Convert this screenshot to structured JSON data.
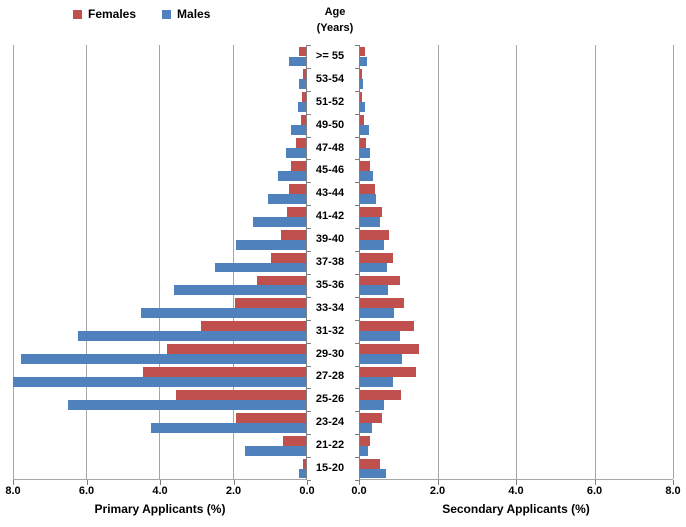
{
  "legend": {
    "items": [
      {
        "label": "Females",
        "color_key": "females"
      },
      {
        "label": "Males",
        "color_key": "males"
      }
    ]
  },
  "colors": {
    "females": "#C0504D",
    "males": "#4F81BD",
    "gridline": "#A6A6A6",
    "axis": "#7F7F7F",
    "text": "#000000"
  },
  "center_axis": {
    "title_line1": "Age",
    "title_line2": "(Years)",
    "categories": [
      ">= 55",
      "53-54",
      "51-52",
      "49-50",
      "47-48",
      "45-46",
      "43-44",
      "41-42",
      "39-40",
      "37-38",
      "35-36",
      "33-34",
      "31-32",
      "29-30",
      "27-28",
      "25-26",
      "23-24",
      "21-22",
      "15-20"
    ]
  },
  "chart_data": [
    {
      "id": "primary",
      "type": "bar",
      "orientation": "horizontal",
      "direction": "rtl",
      "xlabel": "Primary Applicants (%)",
      "xlim": [
        0,
        8
      ],
      "xmax": 8,
      "xticks": [
        8,
        6,
        4,
        2,
        0
      ],
      "gridlines": [
        8,
        6,
        4,
        2
      ],
      "grid": "vertical",
      "legend_position": "top-left",
      "categories": [
        ">= 55",
        "53-54",
        "51-52",
        "49-50",
        "47-48",
        "45-46",
        "43-44",
        "41-42",
        "39-40",
        "37-38",
        "35-36",
        "33-34",
        "31-32",
        "29-30",
        "27-28",
        "25-26",
        "23-24",
        "21-22",
        "15-20"
      ],
      "series": [
        {
          "name": "Females",
          "color_key": "females",
          "values": [
            0.2,
            0.08,
            0.12,
            0.15,
            0.28,
            0.4,
            0.46,
            0.53,
            0.69,
            0.94,
            1.33,
            1.93,
            2.87,
            3.77,
            4.44,
            3.55,
            1.91,
            0.62,
            0.07
          ]
        },
        {
          "name": "Males",
          "color_key": "males",
          "values": [
            0.47,
            0.19,
            0.22,
            0.4,
            0.55,
            0.75,
            1.03,
            1.43,
            1.91,
            2.48,
            3.59,
            4.5,
            6.2,
            7.76,
            7.97,
            6.49,
            4.23,
            1.66,
            0.19
          ]
        }
      ]
    },
    {
      "id": "secondary",
      "type": "bar",
      "orientation": "horizontal",
      "direction": "ltr",
      "xlabel": "Secondary Applicants (%)",
      "xlim": [
        0,
        8
      ],
      "xmax": 8,
      "xticks": [
        0,
        2,
        4,
        6,
        8
      ],
      "gridlines": [
        2,
        4,
        6,
        8
      ],
      "grid": "vertical",
      "categories": [
        ">= 55",
        "53-54",
        "51-52",
        "49-50",
        "47-48",
        "45-46",
        "43-44",
        "41-42",
        "39-40",
        "37-38",
        "35-36",
        "33-34",
        "31-32",
        "29-30",
        "27-28",
        "25-26",
        "23-24",
        "21-22",
        "15-20"
      ],
      "series": [
        {
          "name": "Females",
          "color_key": "females",
          "values": [
            0.12,
            0.04,
            0.06,
            0.1,
            0.15,
            0.25,
            0.38,
            0.55,
            0.73,
            0.85,
            1.02,
            1.13,
            1.38,
            1.5,
            1.42,
            1.04,
            0.55,
            0.26,
            0.52
          ]
        },
        {
          "name": "Males",
          "color_key": "males",
          "values": [
            0.17,
            0.08,
            0.12,
            0.22,
            0.25,
            0.32,
            0.42,
            0.52,
            0.61,
            0.7,
            0.72,
            0.87,
            1.03,
            1.07,
            0.85,
            0.61,
            0.31,
            0.2,
            0.65
          ]
        }
      ]
    }
  ]
}
